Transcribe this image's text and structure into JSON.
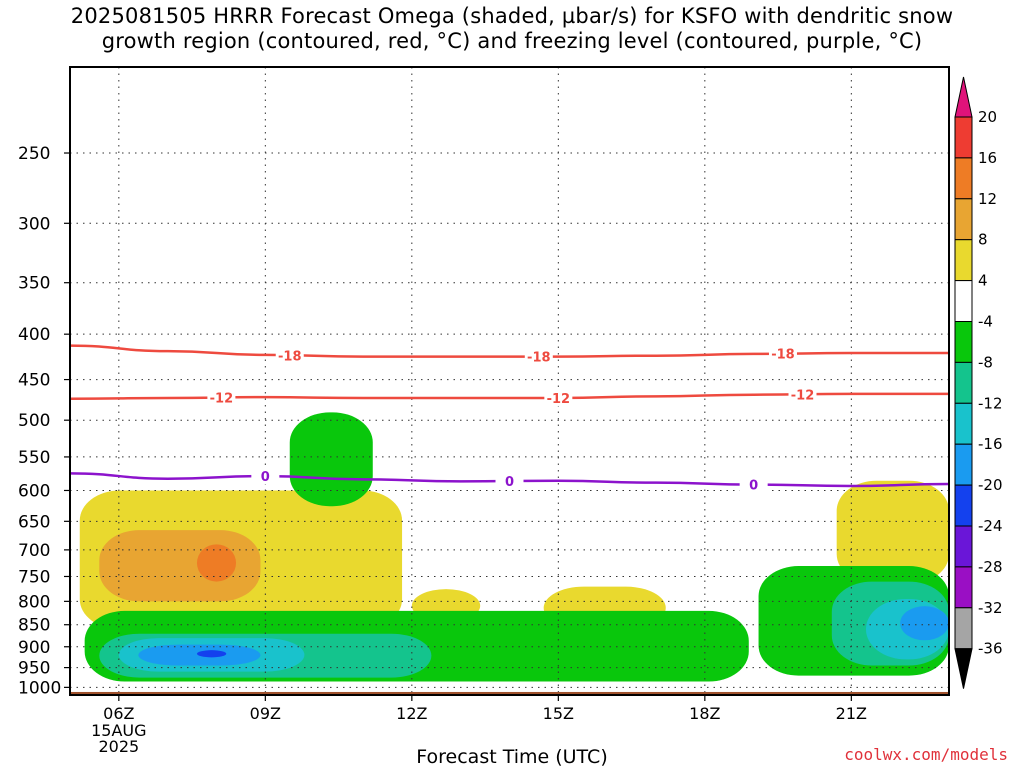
{
  "title_line1": "2025081505 HRRR Forecast Omega (shaded, µbar/s) for KSFO with dendritic snow",
  "title_line2": "growth region (contoured, red, °C) and freezing level (contoured, purple, °C)",
  "credit": "coolwx.com/models",
  "chart_data": {
    "type": "time-height cross-section (filled contour)",
    "xlabel": "Forecast Time (UTC)",
    "ylabel": "",
    "x_ticks": [
      "06Z",
      "09Z",
      "12Z",
      "15Z",
      "18Z",
      "21Z"
    ],
    "x_tick_hours": [
      6,
      9,
      12,
      15,
      18,
      21
    ],
    "x_date_label": [
      "15AUG",
      "2025"
    ],
    "xlim_hours": [
      5.0,
      23.0
    ],
    "y_ticks_hpa": [
      250,
      300,
      350,
      400,
      450,
      500,
      550,
      600,
      650,
      700,
      750,
      800,
      850,
      900,
      950,
      1000
    ],
    "ylim_hpa": [
      1020,
      200
    ],
    "grid": "dotted",
    "ground_level_hpa": 1012,
    "colorbar": {
      "units": "µbar/s",
      "labels": [
        "20",
        "16",
        "12",
        "8",
        "4",
        "-4",
        "-8",
        "-12",
        "-16",
        "-20",
        "-24",
        "-28",
        "-32",
        "-36"
      ],
      "colors": [
        "#e0137a",
        "#ee3c32",
        "#ee7c25",
        "#e8a532",
        "#e9d92e",
        "#ffffff",
        "#09c70c",
        "#14c48d",
        "#19c2cc",
        "#1a9bf0",
        "#1441ee",
        "#6a16d8",
        "#9a0fc4",
        "#a5a5a5",
        "#000000"
      ]
    },
    "omega_regions": [
      {
        "value_range": "4 to 8",
        "color": "#e9d92e",
        "x_hours": [
          5.2,
          11.8
        ],
        "p_hpa": [
          600,
          860
        ]
      },
      {
        "value_range": "8 to 12",
        "color": "#e8a532",
        "x_hours": [
          5.6,
          8.9
        ],
        "p_hpa": [
          665,
          800
        ]
      },
      {
        "value_range": "12 to 16",
        "color": "#ee7c25",
        "x_hours": [
          7.6,
          8.4
        ],
        "p_hpa": [
          690,
          760
        ]
      },
      {
        "value_range": "4 to 8",
        "color": "#e9d92e",
        "x_hours": [
          12.0,
          13.4
        ],
        "p_hpa": [
          775,
          845
        ]
      },
      {
        "value_range": "4 to 8",
        "color": "#e9d92e",
        "x_hours": [
          14.7,
          17.2
        ],
        "p_hpa": [
          770,
          860
        ]
      },
      {
        "value_range": "4 to 8",
        "color": "#e9d92e",
        "x_hours": [
          20.7,
          23.0
        ],
        "p_hpa": [
          585,
          765
        ]
      },
      {
        "value_range": "-8 to -4",
        "color": "#09c70c",
        "x_hours": [
          9.5,
          11.2
        ],
        "p_hpa": [
          490,
          625
        ]
      },
      {
        "value_range": "-8 to -4",
        "color": "#09c70c",
        "x_hours": [
          5.3,
          18.9
        ],
        "p_hpa": [
          820,
          985
        ]
      },
      {
        "value_range": "-12 to -8",
        "color": "#14c48d",
        "x_hours": [
          5.6,
          12.4
        ],
        "p_hpa": [
          870,
          975
        ]
      },
      {
        "value_range": "-16 to -12",
        "color": "#19c2cc",
        "x_hours": [
          6.0,
          9.8
        ],
        "p_hpa": [
          880,
          960
        ]
      },
      {
        "value_range": "-20 to -16",
        "color": "#1a9bf0",
        "x_hours": [
          6.4,
          8.9
        ],
        "p_hpa": [
          895,
          945
        ]
      },
      {
        "value_range": "-24 to -20",
        "color": "#1441ee",
        "x_hours": [
          7.6,
          8.2
        ],
        "p_hpa": [
          908,
          925
        ]
      },
      {
        "value_range": "-8 to -4",
        "color": "#09c70c",
        "x_hours": [
          19.1,
          23.0
        ],
        "p_hpa": [
          730,
          970
        ]
      },
      {
        "value_range": "-12 to -8",
        "color": "#14c48d",
        "x_hours": [
          20.6,
          23.0
        ],
        "p_hpa": [
          760,
          945
        ]
      },
      {
        "value_range": "-16 to -12",
        "color": "#19c2cc",
        "x_hours": [
          21.3,
          23.0
        ],
        "p_hpa": [
          795,
          930
        ]
      },
      {
        "value_range": "-20 to -16",
        "color": "#1a9bf0",
        "x_hours": [
          22.0,
          23.0
        ],
        "p_hpa": [
          810,
          885
        ]
      }
    ],
    "contours": [
      {
        "name": "-18",
        "color": "#ee4a3f",
        "x_hours": [
          5,
          7,
          9,
          11,
          13,
          15,
          17,
          19,
          21,
          23
        ],
        "p_hpa": [
          412,
          418,
          422,
          424,
          424,
          424,
          423,
          421,
          420,
          420
        ],
        "label_hours": [
          9.5,
          14.6,
          19.6
        ]
      },
      {
        "name": "-12",
        "color": "#ee4a3f",
        "x_hours": [
          5,
          7,
          9,
          11,
          13,
          15,
          17,
          19,
          21,
          23
        ],
        "p_hpa": [
          473,
          472,
          471,
          472,
          472,
          472,
          470,
          468,
          467,
          467
        ],
        "label_hours": [
          8.1,
          15.0,
          20.0
        ]
      },
      {
        "name": "0",
        "color": "#8c13cc",
        "x_hours": [
          5,
          7,
          9,
          11,
          13,
          15,
          17,
          19,
          21,
          23
        ],
        "p_hpa": [
          574,
          582,
          578,
          583,
          586,
          585,
          588,
          591,
          593,
          590
        ],
        "label_hours": [
          9.0,
          14.0,
          19.0
        ]
      }
    ]
  }
}
